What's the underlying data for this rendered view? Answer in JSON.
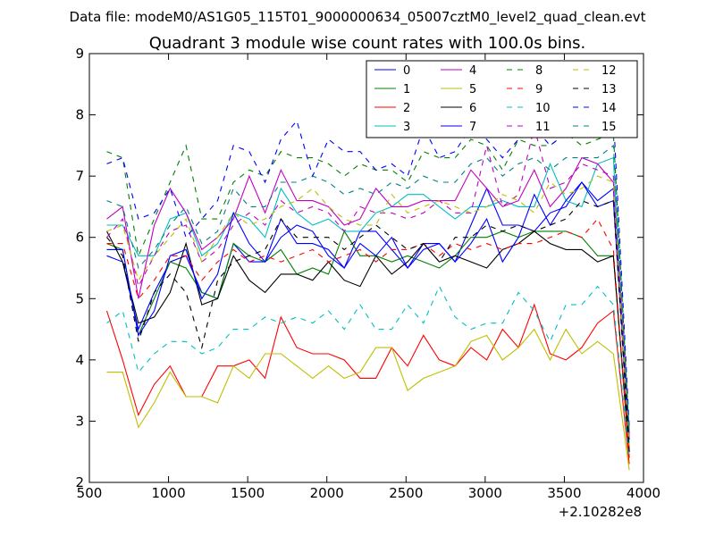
{
  "suptitle": "Data file: modeM0/AS1G05_115T01_9000000634_05007cztM0_level2_quad_clean.evt",
  "chart_data": {
    "type": "line",
    "title": "Quadrant 3 module wise count rates with 100.0s bins.",
    "xlabel": "",
    "ylabel": "",
    "xlim": [
      500,
      4000
    ],
    "ylim": [
      2,
      9
    ],
    "x_offset_label": "+2.10282e8",
    "xticks": [
      500,
      1000,
      1500,
      2000,
      2500,
      3000,
      3500,
      4000
    ],
    "yticks": [
      2,
      3,
      4,
      5,
      6,
      7,
      8,
      9
    ],
    "grid": false,
    "legend_position": "top-right",
    "legend_columns": 4,
    "x": [
      610,
      710,
      810,
      910,
      1010,
      1110,
      1210,
      1310,
      1410,
      1510,
      1610,
      1710,
      1810,
      1910,
      2010,
      2110,
      2210,
      2310,
      2410,
      2510,
      2610,
      2710,
      2810,
      2910,
      3010,
      3110,
      3210,
      3310,
      3410,
      3510,
      3610,
      3710,
      3810,
      3910
    ],
    "series": [
      {
        "name": "0",
        "color": "#0000ff",
        "dash": "solid",
        "values": [
          5.7,
          5.6,
          4.5,
          5.1,
          5.6,
          5.7,
          5.1,
          5.0,
          5.9,
          5.6,
          5.6,
          6.3,
          5.9,
          5.9,
          5.8,
          5.5,
          6.1,
          6.1,
          5.8,
          5.5,
          5.9,
          5.9,
          5.6,
          6.2,
          6.8,
          6.2,
          6.2,
          6.1,
          6.4,
          6.5,
          6.9,
          6.6,
          6.8,
          2.5
        ]
      },
      {
        "name": "1",
        "color": "#008000",
        "dash": "solid",
        "values": [
          5.9,
          5.8,
          4.4,
          5.0,
          5.6,
          5.5,
          5.1,
          5.0,
          5.9,
          5.7,
          5.6,
          5.8,
          5.4,
          5.5,
          5.4,
          6.1,
          5.7,
          5.7,
          5.6,
          5.7,
          5.6,
          5.5,
          5.7,
          6.0,
          6.0,
          6.1,
          6.0,
          6.1,
          6.1,
          6.1,
          6.0,
          5.7,
          5.7,
          2.4
        ]
      },
      {
        "name": "2",
        "color": "#ff0000",
        "dash": "solid",
        "values": [
          4.8,
          4.0,
          3.1,
          3.6,
          3.9,
          3.4,
          3.4,
          3.9,
          3.9,
          4.0,
          3.7,
          4.7,
          4.2,
          4.1,
          4.1,
          4.0,
          3.7,
          3.7,
          4.2,
          3.9,
          4.4,
          4.0,
          3.9,
          4.2,
          4.0,
          4.5,
          4.2,
          4.9,
          4.1,
          4.0,
          4.2,
          4.6,
          4.8,
          2.3
        ]
      },
      {
        "name": "3",
        "color": "#00bfbf",
        "dash": "solid",
        "values": [
          6.2,
          6.2,
          5.7,
          5.7,
          6.3,
          6.4,
          5.7,
          5.9,
          6.4,
          6.3,
          6.0,
          6.8,
          6.4,
          6.2,
          6.3,
          6.1,
          6.1,
          6.4,
          6.5,
          6.7,
          6.7,
          6.5,
          6.3,
          6.5,
          6.5,
          6.6,
          6.5,
          6.5,
          7.2,
          6.6,
          6.5,
          7.2,
          7.3,
          2.6
        ]
      },
      {
        "name": "4",
        "color": "#bf00bf",
        "dash": "solid",
        "values": [
          6.3,
          6.5,
          5.0,
          6.2,
          6.8,
          6.4,
          5.8,
          6.0,
          6.3,
          7.0,
          6.4,
          7.1,
          6.6,
          6.6,
          6.5,
          6.2,
          6.3,
          6.8,
          6.5,
          6.5,
          6.6,
          6.6,
          6.6,
          7.1,
          6.8,
          6.5,
          6.6,
          7.1,
          6.5,
          6.8,
          7.3,
          7.2,
          6.9,
          2.8
        ]
      },
      {
        "name": "5",
        "color": "#bfbf00",
        "dash": "solid",
        "values": [
          3.8,
          3.8,
          2.9,
          3.3,
          3.8,
          3.4,
          3.4,
          3.3,
          3.9,
          3.7,
          4.1,
          4.1,
          3.9,
          3.7,
          3.9,
          3.7,
          3.8,
          4.2,
          4.2,
          3.5,
          3.7,
          3.8,
          3.9,
          4.3,
          4.4,
          4.0,
          4.2,
          4.5,
          4.0,
          4.5,
          4.1,
          4.3,
          4.1,
          2.2
        ]
      },
      {
        "name": "6",
        "color": "#000000",
        "dash": "solid",
        "values": [
          6.1,
          5.6,
          4.6,
          4.7,
          5.1,
          5.9,
          4.9,
          5.0,
          5.7,
          5.3,
          5.1,
          5.4,
          5.4,
          5.3,
          5.6,
          5.3,
          5.2,
          5.7,
          5.4,
          5.6,
          5.9,
          5.6,
          5.7,
          5.6,
          5.5,
          5.8,
          5.9,
          6.1,
          5.9,
          5.8,
          5.8,
          5.6,
          5.7,
          2.5
        ]
      },
      {
        "name": "7",
        "color": "#0000ff",
        "dash": "solid",
        "values": [
          5.8,
          5.8,
          4.4,
          4.8,
          5.7,
          5.8,
          5.0,
          5.4,
          6.4,
          5.9,
          5.6,
          6.0,
          6.2,
          6.1,
          5.7,
          5.5,
          5.9,
          5.7,
          6.0,
          5.5,
          5.8,
          5.9,
          5.6,
          5.9,
          6.3,
          5.6,
          6.0,
          6.7,
          6.2,
          6.6,
          6.9,
          6.5,
          6.6,
          2.7
        ]
      },
      {
        "name": "8",
        "color": "#008000",
        "dash": "dashed",
        "values": [
          7.4,
          7.3,
          5.7,
          6.3,
          6.9,
          7.5,
          6.3,
          6.3,
          6.9,
          7.1,
          7.0,
          7.4,
          7.3,
          7.3,
          7.2,
          7.0,
          7.2,
          7.1,
          7.1,
          6.9,
          7.4,
          7.3,
          7.3,
          7.6,
          7.5,
          7.1,
          7.6,
          7.5,
          7.5,
          7.7,
          7.5,
          7.6,
          7.7,
          2.8
        ]
      },
      {
        "name": "9",
        "color": "#ff0000",
        "dash": "dashed",
        "values": [
          5.9,
          5.9,
          5.0,
          5.3,
          5.7,
          5.7,
          5.3,
          5.6,
          5.8,
          5.6,
          5.7,
          5.6,
          5.7,
          5.8,
          5.6,
          5.7,
          5.8,
          5.6,
          5.8,
          5.8,
          5.9,
          5.7,
          5.9,
          5.8,
          5.9,
          5.8,
          5.9,
          5.9,
          6.0,
          6.1,
          6.0,
          6.3,
          5.8,
          2.4
        ]
      },
      {
        "name": "10",
        "color": "#00bfbf",
        "dash": "dashed",
        "values": [
          4.6,
          4.8,
          3.8,
          4.1,
          4.3,
          4.3,
          4.1,
          4.2,
          4.5,
          4.5,
          4.7,
          4.6,
          4.7,
          4.6,
          4.8,
          4.5,
          4.9,
          4.5,
          4.5,
          4.9,
          4.6,
          5.2,
          4.7,
          4.5,
          4.6,
          4.6,
          5.1,
          4.8,
          4.3,
          4.9,
          4.9,
          5.2,
          4.9,
          2.4
        ]
      },
      {
        "name": "11",
        "color": "#bf00bf",
        "dash": "dashed",
        "values": [
          6.0,
          6.3,
          5.2,
          5.7,
          6.1,
          6.2,
          5.6,
          5.8,
          6.2,
          6.4,
          6.2,
          6.6,
          6.4,
          6.5,
          6.4,
          6.1,
          6.5,
          6.4,
          6.4,
          6.3,
          6.4,
          6.6,
          6.4,
          6.4,
          7.5,
          6.5,
          6.7,
          7.8,
          6.8,
          6.9,
          7.2,
          7.1,
          7.0,
          2.7
        ]
      },
      {
        "name": "12",
        "color": "#bfbf00",
        "dash": "dashed",
        "values": [
          6.1,
          6.2,
          5.3,
          5.7,
          6.0,
          6.3,
          5.6,
          6.0,
          6.4,
          6.2,
          6.3,
          6.5,
          6.6,
          6.8,
          6.5,
          6.3,
          6.2,
          6.2,
          6.7,
          6.4,
          6.5,
          6.6,
          6.5,
          6.4,
          6.5,
          6.7,
          6.6,
          6.4,
          6.9,
          6.7,
          6.8,
          7.0,
          6.9,
          2.6
        ]
      },
      {
        "name": "13",
        "color": "#000000",
        "dash": "dashed",
        "values": [
          6.0,
          5.7,
          4.3,
          5.1,
          5.4,
          5.1,
          4.2,
          5.3,
          5.6,
          5.7,
          5.8,
          6.3,
          6.0,
          6.0,
          6.0,
          5.8,
          6.0,
          6.2,
          6.0,
          5.8,
          5.9,
          5.6,
          6.0,
          6.0,
          6.2,
          6.1,
          6.2,
          6.1,
          6.2,
          6.3,
          6.6,
          6.5,
          6.6,
          2.5
        ]
      },
      {
        "name": "14",
        "color": "#0000ff",
        "dash": "dashed",
        "values": [
          7.2,
          7.3,
          6.3,
          6.4,
          6.8,
          6.0,
          6.3,
          6.6,
          7.5,
          7.4,
          6.9,
          7.6,
          7.9,
          7.0,
          7.6,
          7.4,
          7.4,
          7.1,
          7.2,
          7.0,
          7.8,
          7.3,
          7.4,
          7.8,
          7.6,
          7.3,
          7.6,
          7.8,
          7.5,
          7.7,
          8.1,
          7.8,
          8.0,
          2.9
        ]
      },
      {
        "name": "15",
        "color": "#008080",
        "dash": "dashed",
        "values": [
          6.6,
          6.5,
          5.5,
          5.8,
          6.2,
          6.5,
          5.9,
          6.1,
          6.8,
          6.5,
          6.5,
          6.9,
          6.9,
          7.0,
          6.9,
          6.7,
          6.8,
          6.7,
          6.9,
          6.8,
          7.0,
          6.9,
          6.9,
          7.2,
          7.3,
          7.0,
          7.2,
          7.3,
          7.1,
          7.3,
          7.3,
          7.3,
          7.5,
          2.8
        ]
      }
    ]
  }
}
